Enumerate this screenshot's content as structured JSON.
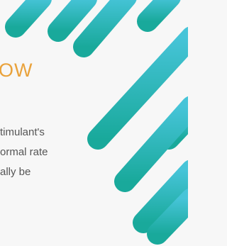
{
  "heading": "OW",
  "body": [
    "timulant's",
    "ormal rate",
    "ally be"
  ]
}
